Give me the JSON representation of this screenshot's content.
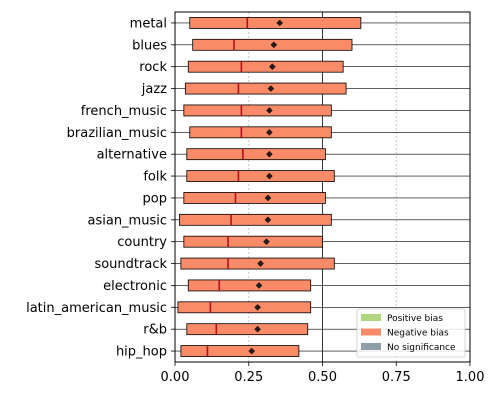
{
  "chart_data": {
    "type": "bar",
    "orientation": "horizontal",
    "chart_style": "box-range",
    "categories": [
      "metal",
      "blues",
      "rock",
      "jazz",
      "french_music",
      "brazilian_music",
      "alternative",
      "folk",
      "pop",
      "asian_music",
      "country",
      "soundtrack",
      "electronic",
      "latin_american_music",
      "r&b",
      "hip_hop"
    ],
    "series": [
      {
        "start": [
          0.05,
          0.06,
          0.045,
          0.035,
          0.03,
          0.05,
          0.04,
          0.04,
          0.03,
          0.015,
          0.03,
          0.02,
          0.045,
          0.01,
          0.04,
          0.02
        ],
        "end": [
          0.63,
          0.6,
          0.57,
          0.58,
          0.53,
          0.53,
          0.51,
          0.54,
          0.51,
          0.53,
          0.5,
          0.54,
          0.46,
          0.46,
          0.45,
          0.42
        ],
        "median": [
          0.245,
          0.2,
          0.225,
          0.215,
          0.225,
          0.225,
          0.23,
          0.215,
          0.205,
          0.19,
          0.18,
          0.18,
          0.15,
          0.12,
          0.14,
          0.11
        ],
        "mean": [
          0.355,
          0.335,
          0.33,
          0.325,
          0.32,
          0.32,
          0.32,
          0.32,
          0.315,
          0.315,
          0.31,
          0.29,
          0.285,
          0.28,
          0.28,
          0.26
        ],
        "bias": [
          "negative",
          "negative",
          "negative",
          "negative",
          "negative",
          "negative",
          "negative",
          "negative",
          "negative",
          "negative",
          "negative",
          "negative",
          "negative",
          "negative",
          "negative",
          "negative"
        ]
      }
    ],
    "xlim": [
      0,
      1
    ],
    "xticks": [
      "0.00",
      "0.25",
      "0.50",
      "0.75",
      "1.00"
    ],
    "grid": "vertical-dashed",
    "legend_position": "bottom-right",
    "legend": [
      {
        "label": "Positive bias",
        "color": "#b0d67f"
      },
      {
        "label": "Negative bias",
        "color": "#fa8b68"
      },
      {
        "label": "No significance",
        "color": "#8f9fa9"
      }
    ],
    "colors": {
      "negative": "#fa8b68",
      "positive": "#b0d67f",
      "none": "#8f9fa9",
      "median": "#b1121a",
      "mean": "#2b1a1a"
    }
  }
}
